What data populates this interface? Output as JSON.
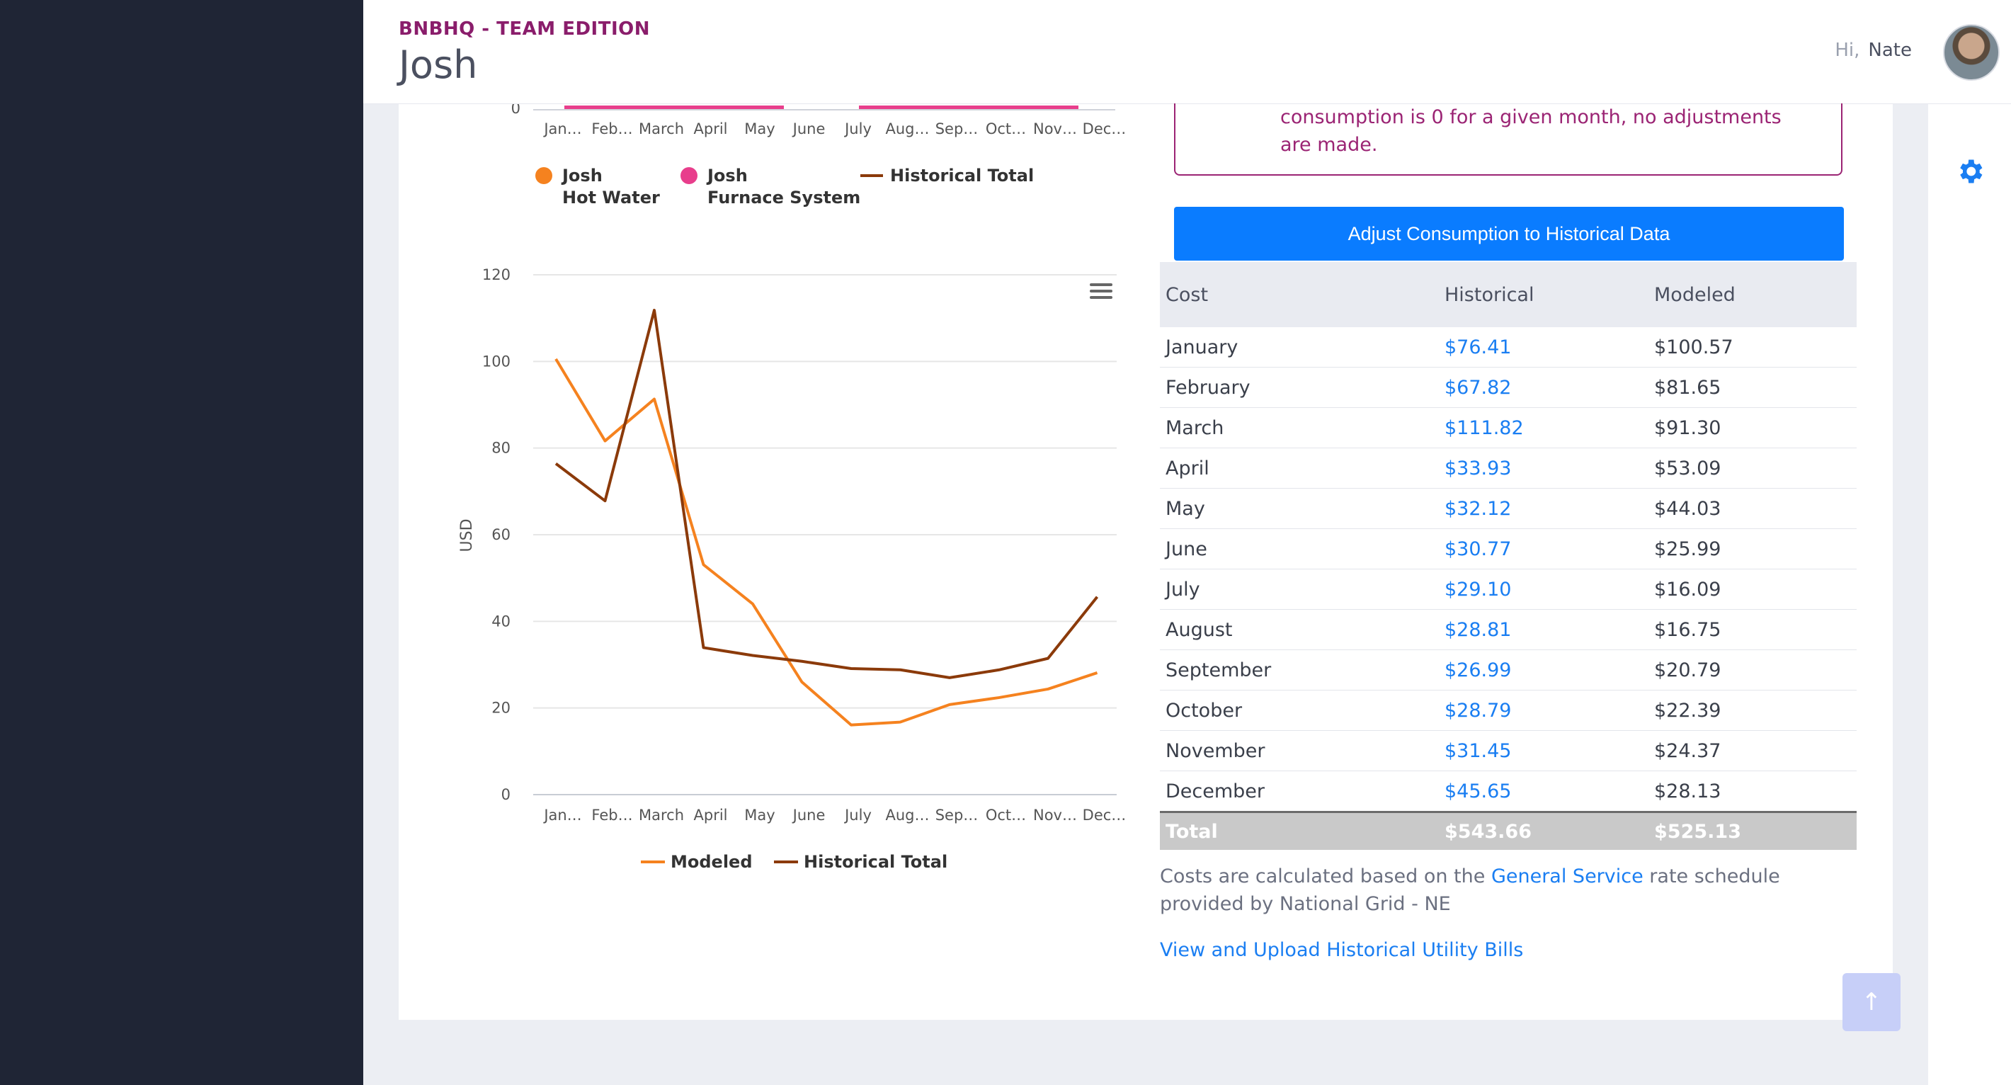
{
  "header": {
    "brand": "BNBHQ - TEAM EDITION",
    "page_title": "Josh",
    "greeting_hi": "Hi,",
    "user_name": "Nate"
  },
  "notice": {
    "text": "consumption is 0 for a given month, no adjustments are made."
  },
  "adjust_button": "Adjust Consumption to Historical Data",
  "top_chart": {
    "y_tick": "0",
    "x_labels": [
      "Jan…",
      "Feb…",
      "March",
      "April",
      "May",
      "June",
      "July",
      "Aug…",
      "Sep…",
      "Oct…",
      "Nov…",
      "Dec…"
    ],
    "legend": [
      {
        "line1": "Josh",
        "line2": "Hot Water",
        "color": "#f5821f"
      },
      {
        "line1": "Josh",
        "line2": "Furnace System",
        "color": "#e83e8c"
      },
      {
        "line1": "Historical Total",
        "line2": "",
        "color": "#8b3a0a"
      }
    ]
  },
  "chart_data": {
    "type": "line",
    "ylabel": "USD",
    "ylim": [
      0,
      120
    ],
    "y_ticks": [
      "0",
      "20",
      "40",
      "60",
      "80",
      "100",
      "120"
    ],
    "categories": [
      "Jan…",
      "Feb…",
      "March",
      "April",
      "May",
      "June",
      "July",
      "Aug…",
      "Sep…",
      "Oct…",
      "Nov…",
      "Dec…"
    ],
    "series": [
      {
        "name": "Modeled",
        "color": "#f5821f",
        "values": [
          100.57,
          81.65,
          91.3,
          53.09,
          44.03,
          25.99,
          16.09,
          16.75,
          20.79,
          22.39,
          24.37,
          28.13
        ]
      },
      {
        "name": "Historical Total",
        "color": "#8b3a0a",
        "values": [
          76.41,
          67.82,
          111.82,
          33.93,
          32.12,
          30.77,
          29.1,
          28.81,
          26.99,
          28.79,
          31.45,
          45.65
        ]
      }
    ],
    "legend": "bottom"
  },
  "table": {
    "headers": [
      "Cost",
      "Historical",
      "Modeled"
    ],
    "rows": [
      [
        "January",
        "$76.41",
        "$100.57"
      ],
      [
        "February",
        "$67.82",
        "$81.65"
      ],
      [
        "March",
        "$111.82",
        "$91.30"
      ],
      [
        "April",
        "$33.93",
        "$53.09"
      ],
      [
        "May",
        "$32.12",
        "$44.03"
      ],
      [
        "June",
        "$30.77",
        "$25.99"
      ],
      [
        "July",
        "$29.10",
        "$16.09"
      ],
      [
        "August",
        "$28.81",
        "$16.75"
      ],
      [
        "September",
        "$26.99",
        "$20.79"
      ],
      [
        "October",
        "$28.79",
        "$22.39"
      ],
      [
        "November",
        "$31.45",
        "$24.37"
      ],
      [
        "December",
        "$45.65",
        "$28.13"
      ]
    ],
    "total": [
      "Total",
      "$543.66",
      "$525.13"
    ]
  },
  "footnote": {
    "prefix": "Costs are calculated based on the ",
    "link": "General Service",
    "suffix": " rate schedule provided by National Grid - NE"
  },
  "bills_link": "View and Upload Historical Utility Bills",
  "icons": {
    "settings": "gear-icon",
    "menu": "hamburger-menu-icon",
    "scroll": "arrow-up-icon"
  }
}
